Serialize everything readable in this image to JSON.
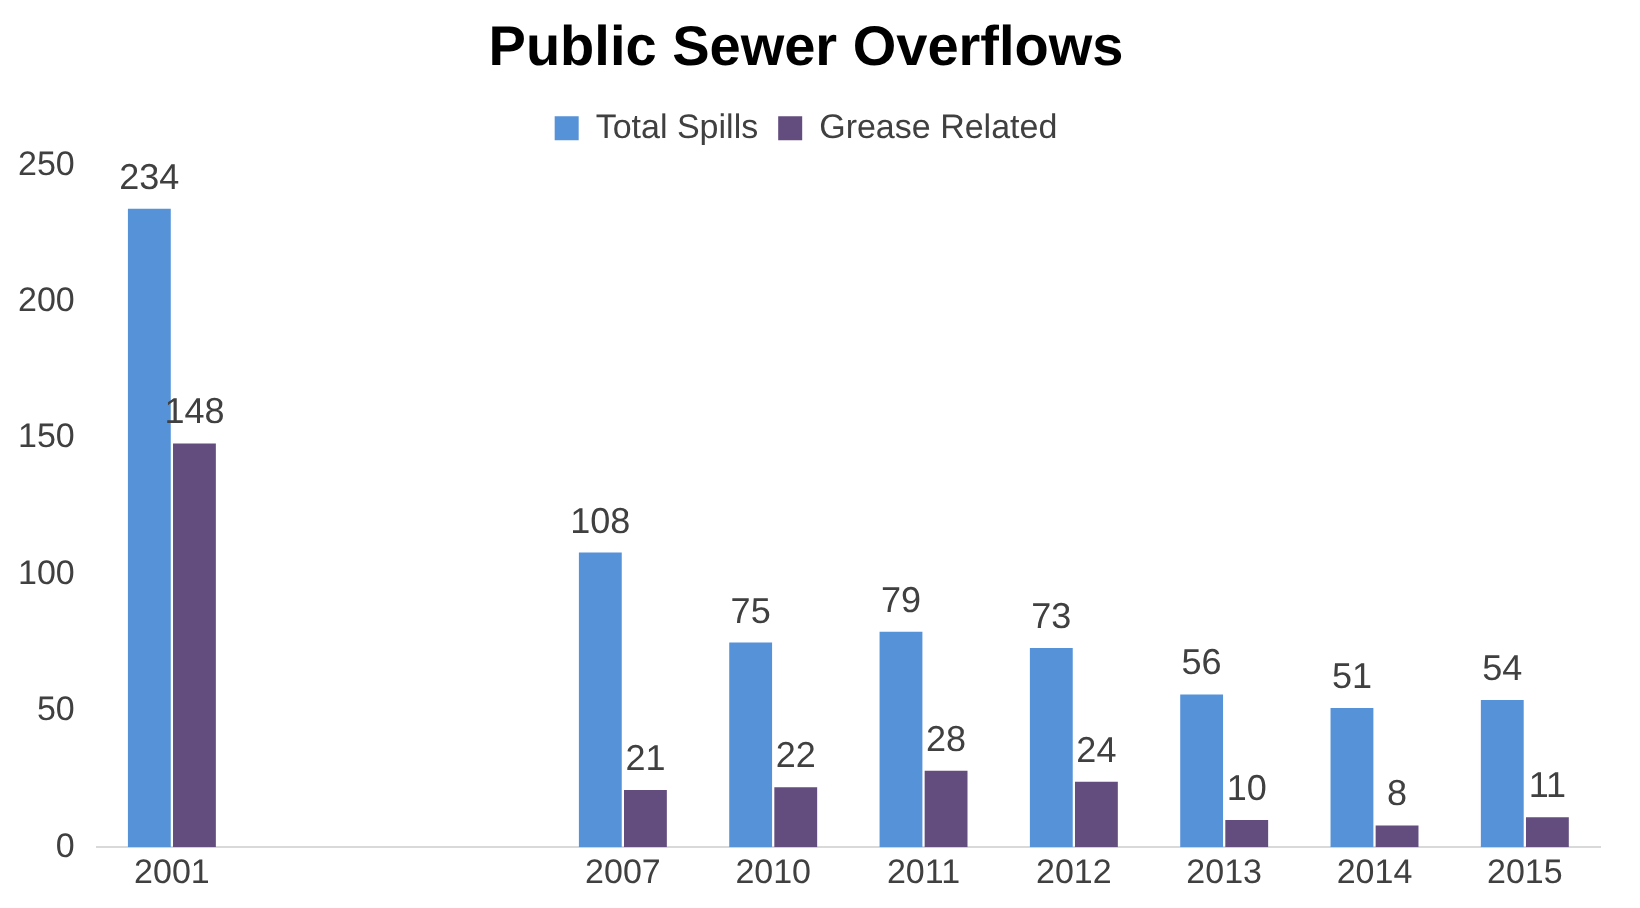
{
  "chart_data": {
    "type": "bar",
    "title": "Public Sewer Overflows",
    "categories": [
      "2001",
      null,
      null,
      "2007",
      "2010",
      "2011",
      "2012",
      "2013",
      "2014",
      "2015"
    ],
    "series": [
      {
        "name": "Total Spills",
        "color": "#5592d8",
        "values": [
          234,
          null,
          null,
          108,
          75,
          79,
          73,
          56,
          51,
          54
        ]
      },
      {
        "name": "Grease Related",
        "color": "#634d7f",
        "values": [
          148,
          null,
          null,
          21,
          22,
          28,
          24,
          10,
          8,
          11
        ]
      }
    ],
    "ylim": [
      0,
      250
    ],
    "yticks": [
      0,
      50,
      100,
      150,
      200,
      250
    ],
    "grid": false,
    "legend": "top",
    "data_labels": true
  }
}
